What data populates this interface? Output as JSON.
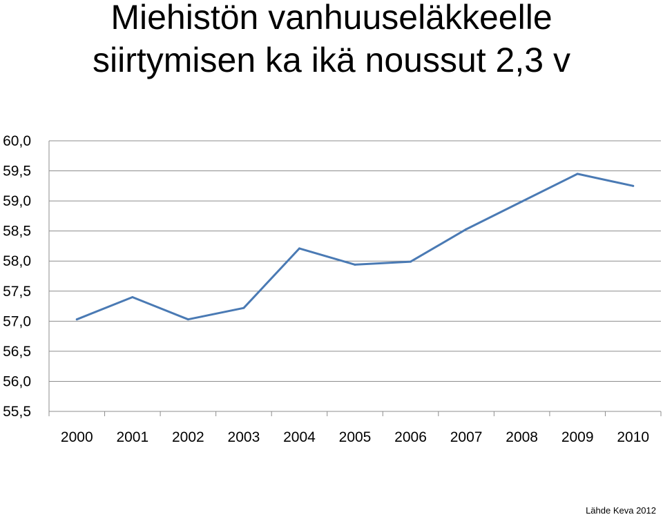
{
  "title_lines": [
    "Miehistön vanhuuseläkkeelle",
    "siirtymisen ka ikä noussut 2,3 v"
  ],
  "source": "Lähde Keva 2012",
  "chart_data": {
    "type": "line",
    "title": "Miehistön vanhuuseläkkeelle siirtymisen ka ikä noussut 2,3 v",
    "xlabel": "",
    "ylabel": "",
    "categories": [
      "2000",
      "2001",
      "2002",
      "2003",
      "2004",
      "2005",
      "2006",
      "2007",
      "2008",
      "2009",
      "2010"
    ],
    "series": [
      {
        "values": [
          57.03,
          57.4,
          57.03,
          57.22,
          58.21,
          57.94,
          57.99,
          58.53,
          58.99,
          59.45,
          59.25
        ],
        "color": "#4a7ab4"
      }
    ],
    "ylim": [
      55.5,
      60.0
    ],
    "yticks": [
      60.0,
      59.5,
      59.0,
      58.5,
      58.0,
      57.5,
      57.0,
      56.5,
      56.0,
      55.5
    ],
    "ytick_labels": [
      "60,0",
      "59,5",
      "59,0",
      "58,5",
      "58,0",
      "57,5",
      "57,0",
      "56,5",
      "56,0",
      "55,5"
    ],
    "grid": true,
    "legend": "none"
  }
}
